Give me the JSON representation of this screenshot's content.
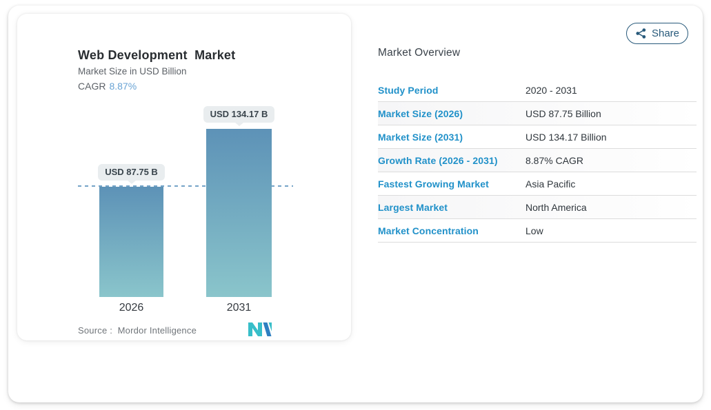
{
  "share": {
    "label": "Share"
  },
  "chart": {
    "title": "Web Development  Market",
    "subtitle": "Market Size in USD Billion",
    "cagr_label": "CAGR",
    "cagr_value": "8.87%",
    "source_label": "Source :  Mordor Intelligence",
    "bars": [
      {
        "year": "2026",
        "label": "USD 87.75 B"
      },
      {
        "year": "2031",
        "label": "USD 134.17 B"
      }
    ]
  },
  "chart_data": {
    "type": "bar",
    "title": "Web Development Market",
    "subtitle": "Market Size in USD Billion",
    "cagr": "8.87%",
    "categories": [
      "2026",
      "2031"
    ],
    "values": [
      87.75,
      134.17
    ],
    "bar_labels": [
      "USD 87.75 B",
      "USD 134.17 B"
    ],
    "reference_line": 87.75,
    "ylim": [
      0,
      134.17
    ],
    "grid": false,
    "legend": false,
    "source": "Mordor Intelligence"
  },
  "overview": {
    "heading": "Market Overview",
    "rows": [
      {
        "label": "Study Period",
        "value": "2020 - 2031"
      },
      {
        "label": "Market Size (2026)",
        "value": "USD 87.75 Billion"
      },
      {
        "label": "Market Size (2031)",
        "value": "USD 134.17 Billion"
      },
      {
        "label": "Growth Rate (2026 - 2031)",
        "value": "8.87% CAGR"
      },
      {
        "label": "Fastest Growing Market",
        "value": "Asia Pacific"
      },
      {
        "label": "Largest Market",
        "value": "North America"
      },
      {
        "label": "Market Concentration",
        "value": "Low"
      }
    ]
  },
  "colors": {
    "accent_blue": "#2191c9",
    "cagr_blue": "#68a3d4",
    "share_teal": "#27597a",
    "bar_top": "#5d92b7",
    "bar_bottom": "#8ac5cb",
    "dashed_line": "#74a3c7",
    "tooltip_bg": "#e9edef",
    "logo_teal": "#38bec9",
    "logo_blue": "#2f7fc1"
  }
}
